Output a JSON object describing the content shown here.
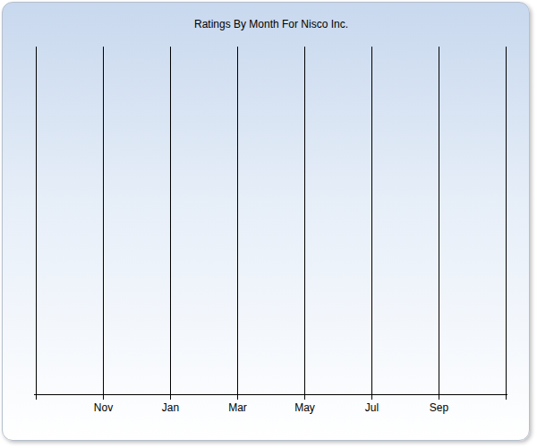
{
  "chart_data": {
    "type": "line",
    "title": "Ratings By Month For Nisco Inc.",
    "categories": [
      null,
      "Nov",
      "Jan",
      "Mar",
      "May",
      "Jul",
      "Sep",
      null
    ],
    "values": [
      null,
      null,
      null,
      null,
      null,
      null,
      null,
      null
    ],
    "grid": true,
    "tick_labels": "x"
  }
}
